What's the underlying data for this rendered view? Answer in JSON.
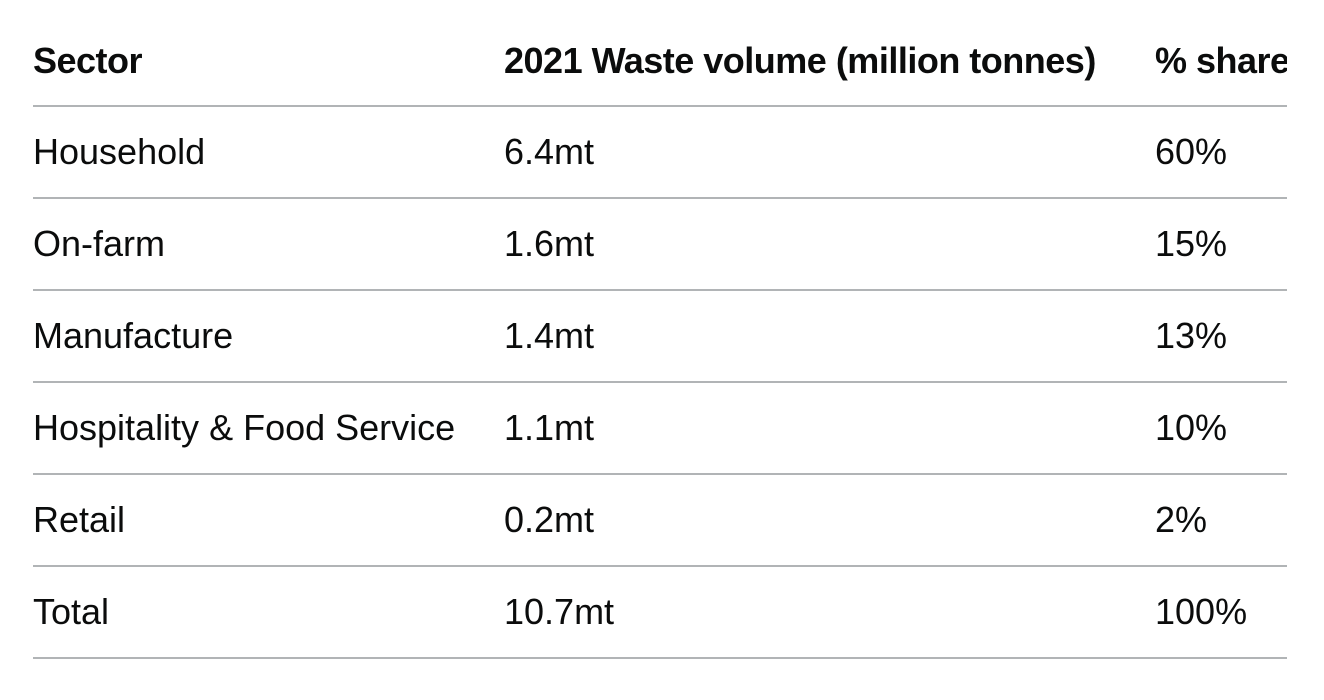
{
  "table": {
    "headers": [
      "Sector",
      "2021 Waste volume (million tonnes)",
      "% share"
    ],
    "rows": [
      [
        "Household",
        "6.4mt",
        "60%"
      ],
      [
        "On-farm",
        "1.6mt",
        "15%"
      ],
      [
        "Manufacture",
        "1.4mt",
        "13%"
      ],
      [
        "Hospitality & Food Service",
        "1.1mt",
        "10%"
      ],
      [
        "Retail",
        "0.2mt",
        "2%"
      ],
      [
        "Total",
        "10.7mt",
        "100%"
      ]
    ]
  }
}
